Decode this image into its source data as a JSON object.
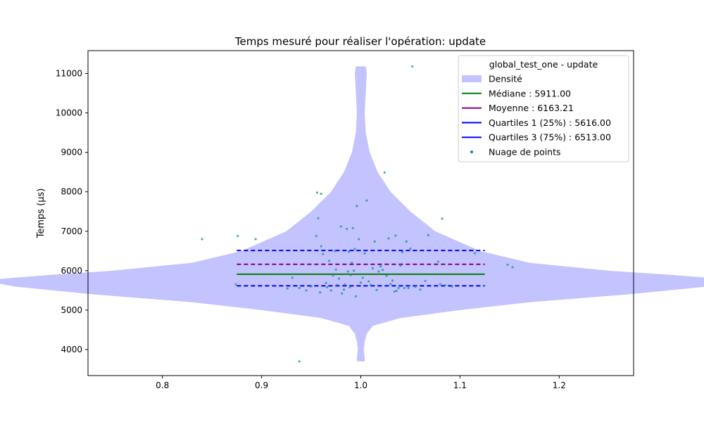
{
  "chart_data": {
    "type": "violin",
    "title": "Temps mesuré pour réaliser l'opération: update",
    "xlabel": "",
    "ylabel": "Temps (µs)",
    "xlim": [
      0.725,
      1.275
    ],
    "ylim": [
      3340,
      11580
    ],
    "x_ticks": [
      0.8,
      0.9,
      1.0,
      1.1,
      1.2
    ],
    "x_tick_labels": [
      "0.8",
      "0.9",
      "1.0",
      "1.1",
      "1.2"
    ],
    "y_ticks": [
      4000,
      5000,
      6000,
      7000,
      8000,
      9000,
      10000,
      11000
    ],
    "y_tick_labels": [
      "4000",
      "5000",
      "6000",
      "7000",
      "8000",
      "9000",
      "10000",
      "11000"
    ],
    "violin": {
      "position": 1.0,
      "color": "#c3c3ff",
      "profile": [
        {
          "y": 3700,
          "hw": 0.004
        },
        {
          "y": 3800,
          "hw": 0.004
        },
        {
          "y": 4000,
          "hw": 0.003
        },
        {
          "y": 4200,
          "hw": 0.004
        },
        {
          "y": 4400,
          "hw": 0.006
        },
        {
          "y": 4600,
          "hw": 0.012
        },
        {
          "y": 4800,
          "hw": 0.04
        },
        {
          "y": 5000,
          "hw": 0.1
        },
        {
          "y": 5200,
          "hw": 0.17
        },
        {
          "y": 5400,
          "hw": 0.27
        },
        {
          "y": 5600,
          "hw": 0.35
        },
        {
          "y": 5700,
          "hw": 0.37
        },
        {
          "y": 5750,
          "hw": 0.375
        },
        {
          "y": 5800,
          "hw": 0.36
        },
        {
          "y": 5900,
          "hw": 0.31
        },
        {
          "y": 6000,
          "hw": 0.25
        },
        {
          "y": 6200,
          "hw": 0.17
        },
        {
          "y": 6500,
          "hw": 0.12
        },
        {
          "y": 7000,
          "hw": 0.075
        },
        {
          "y": 7500,
          "hw": 0.05
        },
        {
          "y": 8000,
          "hw": 0.03
        },
        {
          "y": 8500,
          "hw": 0.017
        },
        {
          "y": 9000,
          "hw": 0.009
        },
        {
          "y": 9500,
          "hw": 0.005
        },
        {
          "y": 10000,
          "hw": 0.004
        },
        {
          "y": 10500,
          "hw": 0.005
        },
        {
          "y": 11000,
          "hw": 0.006
        },
        {
          "y": 11180,
          "hw": 0.005
        }
      ]
    },
    "lines": [
      {
        "label": "Médiane : 5911.00",
        "value": 5911.0,
        "color": "#008000",
        "style": "solid",
        "x_range": [
          0.875,
          1.125
        ]
      },
      {
        "label": "Moyenne : 6163.21",
        "value": 6163.21,
        "color": "#800080",
        "style": "dashed",
        "x_range": [
          0.875,
          1.125
        ]
      },
      {
        "label": "Quartiles 1 (25%) : 5616.00",
        "value": 5616.0,
        "color": "#0000ff",
        "style": "dashed",
        "x_range": [
          0.875,
          1.125
        ]
      },
      {
        "label": "Quartiles 3 (75%) : 6513.00",
        "value": 6513.0,
        "color": "#0000ff",
        "style": "dashed",
        "x_range": [
          0.875,
          1.125
        ]
      }
    ],
    "scatter": {
      "label": "Nuage de points",
      "color": "#1f8f8f",
      "points": [
        [
          0.84,
          6800
        ],
        [
          0.876,
          6880
        ],
        [
          0.874,
          5650
        ],
        [
          0.894,
          6800
        ],
        [
          0.926,
          5550
        ],
        [
          0.931,
          5820
        ],
        [
          0.938,
          5560
        ],
        [
          0.938,
          3700
        ],
        [
          0.945,
          5500
        ],
        [
          0.95,
          5600
        ],
        [
          0.955,
          6880
        ],
        [
          0.956,
          7980
        ],
        [
          0.957,
          7330
        ],
        [
          0.959,
          5450
        ],
        [
          0.96,
          7950
        ],
        [
          0.96,
          6620
        ],
        [
          0.962,
          6420
        ],
        [
          0.965,
          5690
        ],
        [
          0.966,
          5580
        ],
        [
          0.968,
          6250
        ],
        [
          0.97,
          5500
        ],
        [
          0.972,
          5880
        ],
        [
          0.974,
          6500
        ],
        [
          0.975,
          6030
        ],
        [
          0.976,
          5640
        ],
        [
          0.978,
          5800
        ],
        [
          0.98,
          7120
        ],
        [
          0.981,
          5420
        ],
        [
          0.983,
          5520
        ],
        [
          0.984,
          5650
        ],
        [
          0.986,
          7060
        ],
        [
          0.987,
          5980
        ],
        [
          0.988,
          6480
        ],
        [
          0.989,
          5580
        ],
        [
          0.99,
          5890
        ],
        [
          0.991,
          6200
        ],
        [
          0.992,
          7080
        ],
        [
          0.993,
          6000
        ],
        [
          0.994,
          6550
        ],
        [
          0.995,
          5350
        ],
        [
          0.996,
          7640
        ],
        [
          0.998,
          6800
        ],
        [
          1.0,
          5700
        ],
        [
          1.002,
          5820
        ],
        [
          1.004,
          6440
        ],
        [
          1.006,
          7780
        ],
        [
          1.008,
          5730
        ],
        [
          1.01,
          5640
        ],
        [
          1.012,
          6060
        ],
        [
          1.014,
          6740
        ],
        [
          1.016,
          5510
        ],
        [
          1.018,
          5980
        ],
        [
          1.02,
          6110
        ],
        [
          1.022,
          6020
        ],
        [
          1.024,
          8490
        ],
        [
          1.026,
          5870
        ],
        [
          1.028,
          6820
        ],
        [
          1.03,
          5660
        ],
        [
          1.032,
          5750
        ],
        [
          1.034,
          5470
        ],
        [
          1.035,
          6890
        ],
        [
          1.036,
          5490
        ],
        [
          1.038,
          5560
        ],
        [
          1.04,
          6130
        ],
        [
          1.042,
          6470
        ],
        [
          1.044,
          5560
        ],
        [
          1.046,
          6740
        ],
        [
          1.048,
          5560
        ],
        [
          1.05,
          6560
        ],
        [
          1.052,
          11180
        ],
        [
          1.055,
          5590
        ],
        [
          1.06,
          5520
        ],
        [
          1.065,
          5740
        ],
        [
          1.068,
          6900
        ],
        [
          1.078,
          6230
        ],
        [
          1.08,
          5660
        ],
        [
          1.082,
          7320
        ],
        [
          1.085,
          5630
        ],
        [
          1.092,
          5600
        ],
        [
          1.115,
          6440
        ],
        [
          1.148,
          6150
        ],
        [
          1.153,
          6090
        ]
      ]
    },
    "legend": {
      "title": "global_test_one - update",
      "placement": "top-right",
      "entries": [
        {
          "kind": "patch",
          "label": "Densité",
          "color": "#c3c3ff"
        },
        {
          "kind": "line",
          "label": "Médiane : 5911.00",
          "color": "#008000"
        },
        {
          "kind": "line",
          "label": "Moyenne : 6163.21",
          "color": "#800080"
        },
        {
          "kind": "line",
          "label": "Quartiles 1 (25%) : 5616.00",
          "color": "#0000ff"
        },
        {
          "kind": "line",
          "label": "Quartiles 3 (75%) : 6513.00",
          "color": "#0000ff"
        },
        {
          "kind": "dot",
          "label": "Nuage de points",
          "color": "#1f7f8f"
        }
      ]
    }
  }
}
